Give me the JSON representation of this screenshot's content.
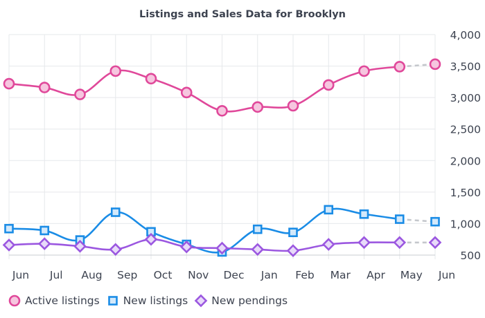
{
  "chart_data": {
    "type": "line",
    "title": "Listings and Sales Data for Brooklyn",
    "xlabel": "",
    "ylabel": "",
    "categories": [
      "Jun",
      "Jul",
      "Aug",
      "Sep",
      "Oct",
      "Nov",
      "Dec",
      "Jan",
      "Feb",
      "Mar",
      "Apr",
      "May",
      "Jun"
    ],
    "y_ticks": [
      "4,000",
      "3,500",
      "3,000",
      "2,500",
      "2,000",
      "1,500",
      "1,000",
      "500"
    ],
    "ylim": [
      500,
      4000
    ],
    "grid": true,
    "legend_position": "bottom-left",
    "series": [
      {
        "name": "Active listings",
        "color": "#e0489a",
        "fill": "#f6c6df",
        "marker": "circle",
        "values": [
          3220,
          3160,
          3050,
          3420,
          3300,
          3080,
          2790,
          2850,
          2870,
          3200,
          3420,
          3490,
          3530
        ],
        "projected_last": true
      },
      {
        "name": "New listings",
        "color": "#1a8ce6",
        "fill": "#d3e9fb",
        "marker": "square",
        "values": [
          920,
          890,
          740,
          1180,
          870,
          670,
          550,
          910,
          860,
          1220,
          1150,
          1070,
          1030
        ],
        "projected_last": true
      },
      {
        "name": "New pendings",
        "color": "#9b57e0",
        "fill": "#e8daf9",
        "marker": "diamond",
        "values": [
          660,
          680,
          640,
          590,
          750,
          630,
          610,
          590,
          570,
          670,
          700,
          700,
          700
        ],
        "projected_last": true
      }
    ],
    "projection_color": "#c4c7cc"
  }
}
